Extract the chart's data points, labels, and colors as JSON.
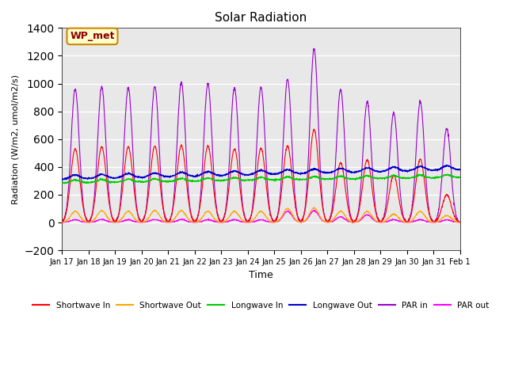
{
  "title": "Solar Radiation",
  "ylabel": "Radiation (W/m2, umol/m2/s)",
  "xlabel": "Time",
  "ylim": [
    -200,
    1400
  ],
  "yticks": [
    -200,
    0,
    200,
    400,
    600,
    800,
    1000,
    1200,
    1400
  ],
  "background_color": "#e8e8e8",
  "grid_color": "white",
  "annotation_text": "WP_met",
  "annotation_bg": "#ffffcc",
  "annotation_border": "#cc8800",
  "annotation_text_color": "#8b0000",
  "n_days": 15,
  "series_colors": {
    "shortwave_in": "#ff0000",
    "shortwave_out": "#ffa500",
    "longwave_in": "#00cc00",
    "longwave_out": "#0000cc",
    "par_in": "#9900cc",
    "par_out": "#ff00ff"
  },
  "legend_labels": [
    "Shortwave In",
    "Shortwave Out",
    "Longwave In",
    "Longwave Out",
    "PAR in",
    "PAR out"
  ],
  "x_tick_labels": [
    "Jan 17",
    "Jan 18",
    "Jan 19",
    "Jan 20",
    "Jan 21",
    "Jan 22",
    "Jan 23",
    "Jan 24",
    "Jan 25",
    "Jan 26",
    "Jan 27",
    "Jan 28",
    "Jan 29",
    "Jan 30",
    "Jan 31",
    "Feb 1"
  ]
}
